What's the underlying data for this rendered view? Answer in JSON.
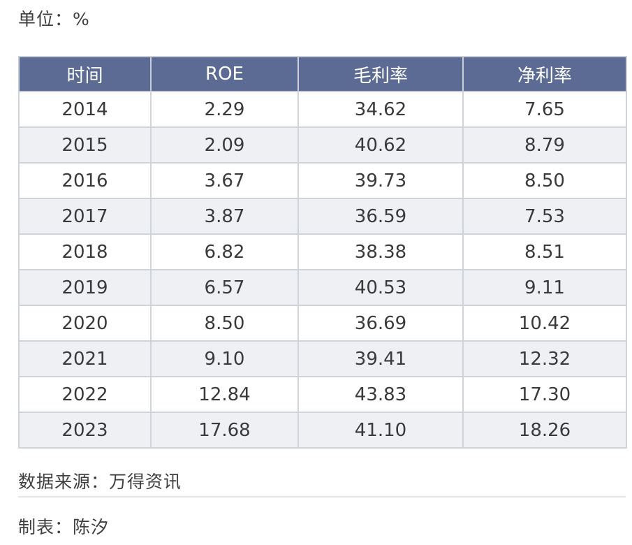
{
  "unit_label": "单位：%",
  "source_label": "数据来源：万得资讯",
  "author_label": "制表：陈汐",
  "colors": {
    "header_bg": "#5b6b93",
    "header_text": "#ffffff",
    "stripe_bg": "#eef0f4",
    "border": "#cfd3da"
  },
  "chart_data": {
    "type": "table",
    "columns": [
      "时间",
      "ROE",
      "毛利率",
      "净利率"
    ],
    "rows": [
      [
        "2014",
        "2.29",
        "34.62",
        "7.65"
      ],
      [
        "2015",
        "2.09",
        "40.62",
        "8.79"
      ],
      [
        "2016",
        "3.67",
        "39.73",
        "8.50"
      ],
      [
        "2017",
        "3.87",
        "36.59",
        "7.53"
      ],
      [
        "2018",
        "6.82",
        "38.38",
        "8.51"
      ],
      [
        "2019",
        "6.57",
        "40.53",
        "9.11"
      ],
      [
        "2020",
        "8.50",
        "36.69",
        "10.42"
      ],
      [
        "2021",
        "9.10",
        "39.41",
        "12.32"
      ],
      [
        "2022",
        "12.84",
        "43.83",
        "17.30"
      ],
      [
        "2023",
        "17.68",
        "41.10",
        "18.26"
      ]
    ]
  }
}
